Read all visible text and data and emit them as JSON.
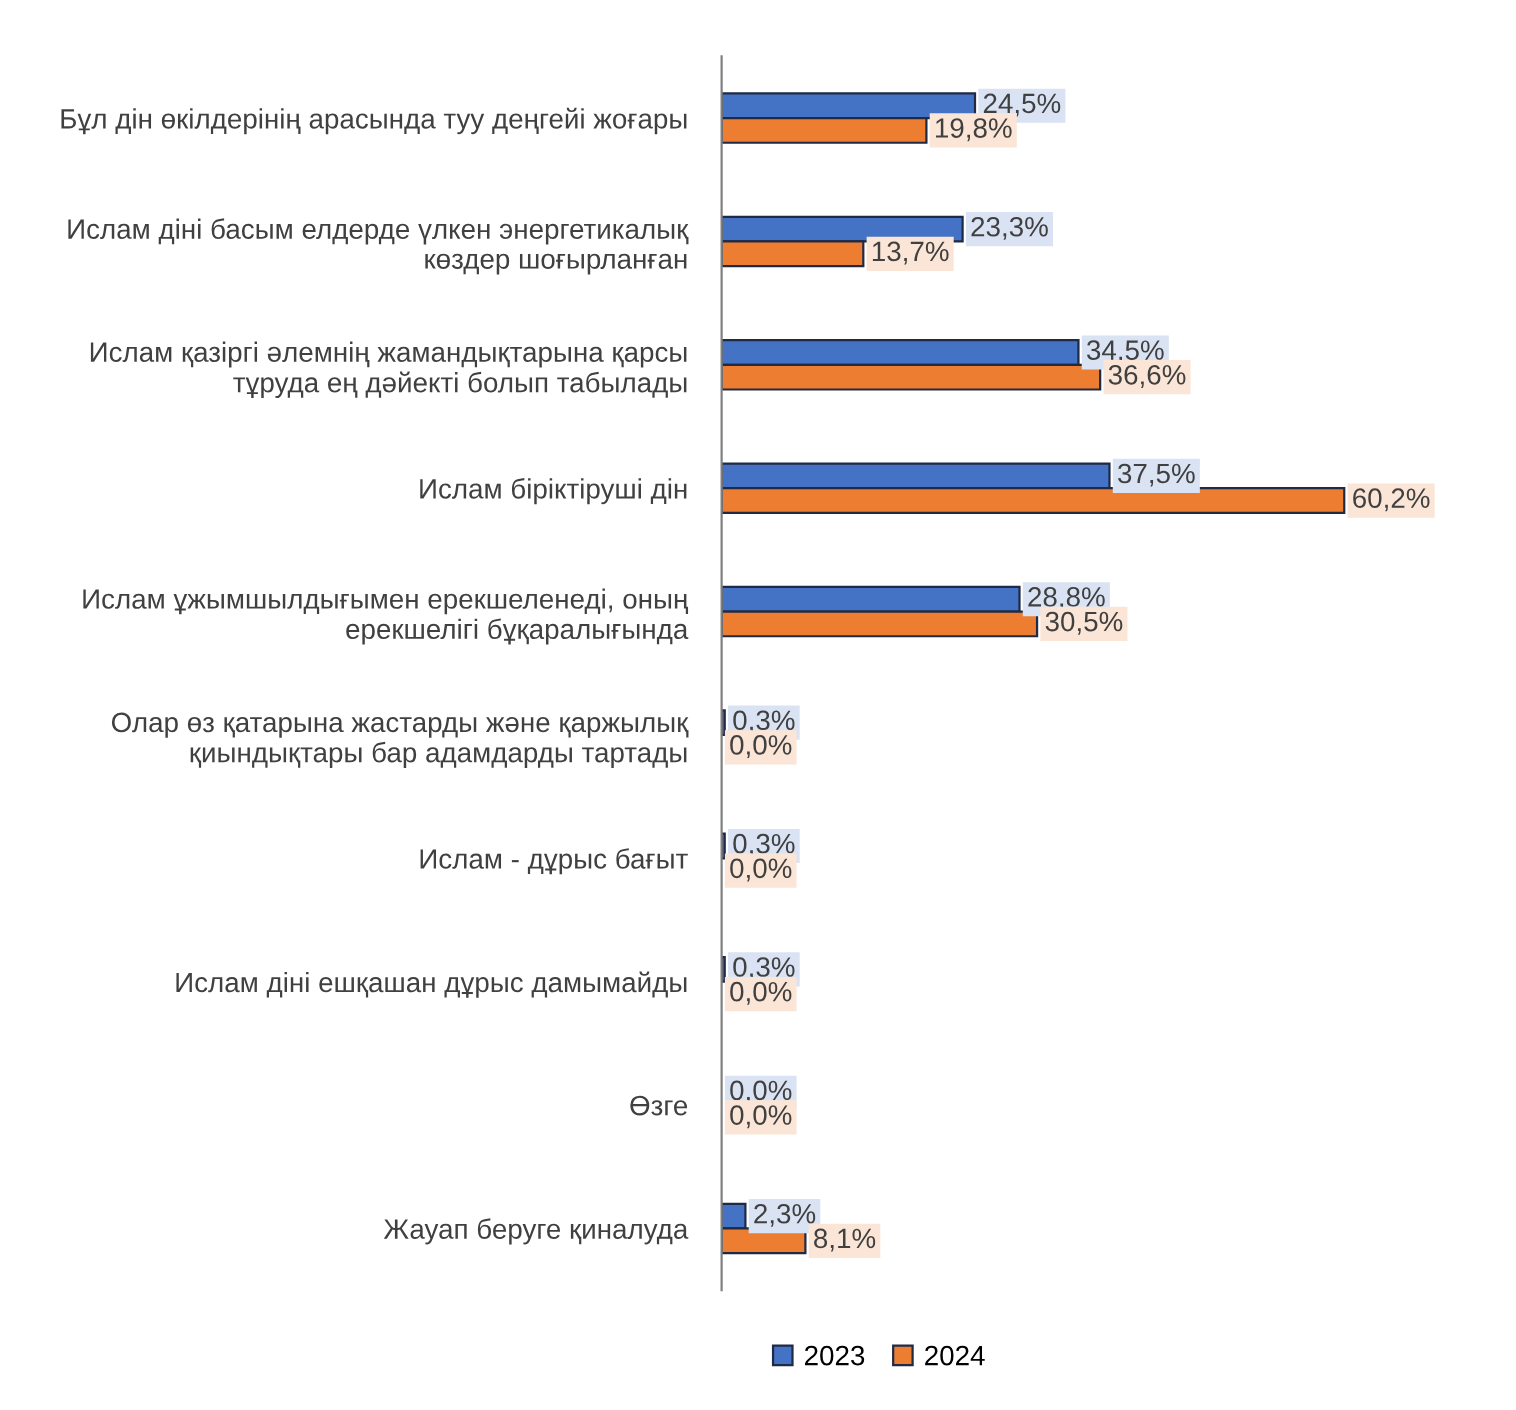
{
  "chart_data": {
    "type": "bar",
    "orientation": "horizontal",
    "legend": "bottom",
    "grid": false,
    "tick_labels": "y",
    "categories": [
      "Бұл дін өкілдерінің арасында туу деңгейі жоғары",
      "Ислам діні басым елдерде үлкен энергетикалық\nкөздер шоғырланған",
      "Ислам қазіргі әлемнің жамандықтарына қарсы\nтұруда ең дәйекті болып табылады",
      "Ислам біріктіруші дін",
      "Ислам ұжымшылдығымен ерекшеленеді, оның\nерекшелігі бұқаралығында",
      "Олар өз қатарына жастарды және қаржылық\nқиындықтары бар адамдарды тартады",
      "Ислам - дұрыс бағыт",
      "Ислам діні ешқашан дұрыс дамымайды",
      "Өзге",
      "Жауап беруге қиналуда"
    ],
    "series": [
      {
        "name": "2023",
        "color": "#4472c4",
        "values": [
          24.5,
          23.3,
          34.5,
          37.5,
          28.8,
          0.3,
          0.3,
          0.3,
          0.0,
          2.3
        ],
        "value_labels": [
          "24,5%",
          "23,3%",
          "34,5%",
          "37,5%",
          "28,8%",
          "0,3%",
          "0,3%",
          "0,3%",
          "0,0%",
          "2,3%"
        ]
      },
      {
        "name": "2024",
        "color": "#ed7d31",
        "values": [
          19.8,
          13.7,
          36.6,
          60.2,
          30.5,
          0.0,
          0.0,
          0.0,
          0.0,
          8.1
        ],
        "value_labels": [
          "19,8%",
          "13,7%",
          "36,6%",
          "60,2%",
          "30,5%",
          "0,0%",
          "0,0%",
          "0,0%",
          "0,0%",
          "8,1%"
        ]
      }
    ]
  }
}
